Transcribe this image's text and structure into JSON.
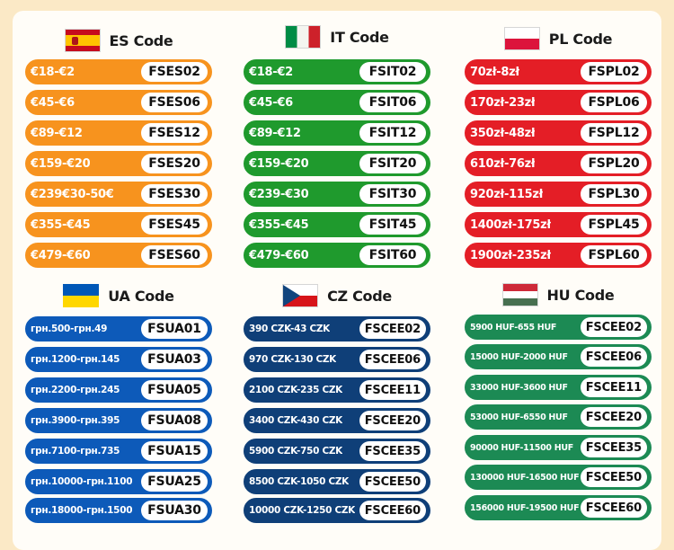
{
  "sections": [
    {
      "id": "es",
      "title": "ES Code",
      "flag": "spain-flag",
      "color": "#f7931e",
      "rows": [
        {
          "range": "€18-€2",
          "code": "FSES02"
        },
        {
          "range": "€45-€6",
          "code": "FSES06"
        },
        {
          "range": "€89-€12",
          "code": "FSES12"
        },
        {
          "range": "€159-€20",
          "code": "FSES20"
        },
        {
          "range": "€239€30-50€",
          "code": "FSES30"
        },
        {
          "range": "€355-€45",
          "code": "FSES45"
        },
        {
          "range": "€479-€60",
          "code": "FSES60"
        }
      ]
    },
    {
      "id": "it",
      "title": "IT Code",
      "flag": "italy-flag",
      "color": "#1f9a2d",
      "rows": [
        {
          "range": "€18-€2",
          "code": "FSIT02"
        },
        {
          "range": "€45-€6",
          "code": "FSIT06"
        },
        {
          "range": "€89-€12",
          "code": "FSIT12"
        },
        {
          "range": "€159-€20",
          "code": "FSIT20"
        },
        {
          "range": "€239-€30",
          "code": "FSIT30"
        },
        {
          "range": "€355-€45",
          "code": "FSIT45"
        },
        {
          "range": "€479-€60",
          "code": "FSIT60"
        }
      ]
    },
    {
      "id": "pl",
      "title": "PL Code",
      "flag": "poland-flag",
      "color": "#e41e26",
      "rows": [
        {
          "range": "70zł-8zł",
          "code": "FSPL02"
        },
        {
          "range": "170zł-23zł",
          "code": "FSPL06"
        },
        {
          "range": "350zł-48zł",
          "code": "FSPL12"
        },
        {
          "range": "610zł-76zł",
          "code": "FSPL20"
        },
        {
          "range": "920zł-115zł",
          "code": "FSPL30"
        },
        {
          "range": "1400zł-175zł",
          "code": "FSPL45"
        },
        {
          "range": "1900zł-235zł",
          "code": "FSPL60"
        }
      ]
    },
    {
      "id": "ua",
      "title": "UA Code",
      "flag": "ukraine-flag",
      "color": "#0d5ab9",
      "rows": [
        {
          "range": "грн.500-грн.49",
          "code": "FSUA01"
        },
        {
          "range": "грн.1200-грн.145",
          "code": "FSUA03"
        },
        {
          "range": "грн.2200-грн.245",
          "code": "FSUA05"
        },
        {
          "range": "грн.3900-грн.395",
          "code": "FSUA08"
        },
        {
          "range": "грн.7100-грн.735",
          "code": "FSUA15"
        },
        {
          "range": "грн.10000-грн.1100",
          "code": "FSUA25"
        },
        {
          "range": "грн.18000-грн.1500",
          "code": "FSUA30"
        }
      ]
    },
    {
      "id": "cz",
      "title": "CZ Code",
      "flag": "czech-flag",
      "color": "#0f3f78",
      "rows": [
        {
          "range": "390 CZK-43 CZK",
          "code": "FSCEE02"
        },
        {
          "range": "970 CZK-130 CZK",
          "code": "FSCEE06"
        },
        {
          "range": "2100 CZK-235 CZK",
          "code": "FSCEE11"
        },
        {
          "range": "3400 CZK-430 CZK",
          "code": "FSCEE20"
        },
        {
          "range": "5900 CZK-750 CZK",
          "code": "FSCEE35"
        },
        {
          "range": "8500 CZK-1050 CZK",
          "code": "FSCEE50"
        },
        {
          "range": "10000 CZK-1250 CZK",
          "code": "FSCEE60"
        }
      ]
    },
    {
      "id": "hu",
      "title": "HU Code",
      "flag": "hungary-flag",
      "color": "#1c8a54",
      "rows": [
        {
          "range": "5900 HUF-655 HUF",
          "code": "FSCEE02"
        },
        {
          "range": "15000 HUF-2000 HUF",
          "code": "FSCEE06"
        },
        {
          "range": "33000 HUF-3600 HUF",
          "code": "FSCEE11"
        },
        {
          "range": "53000 HUF-6550 HUF",
          "code": "FSCEE20"
        },
        {
          "range": "90000 HUF-11500 HUF",
          "code": "FSCEE35"
        },
        {
          "range": "130000 HUF-16500 HUF",
          "code": "FSCEE50"
        },
        {
          "range": "156000 HUF-19500 HUF",
          "code": "FSCEE60"
        }
      ]
    }
  ]
}
